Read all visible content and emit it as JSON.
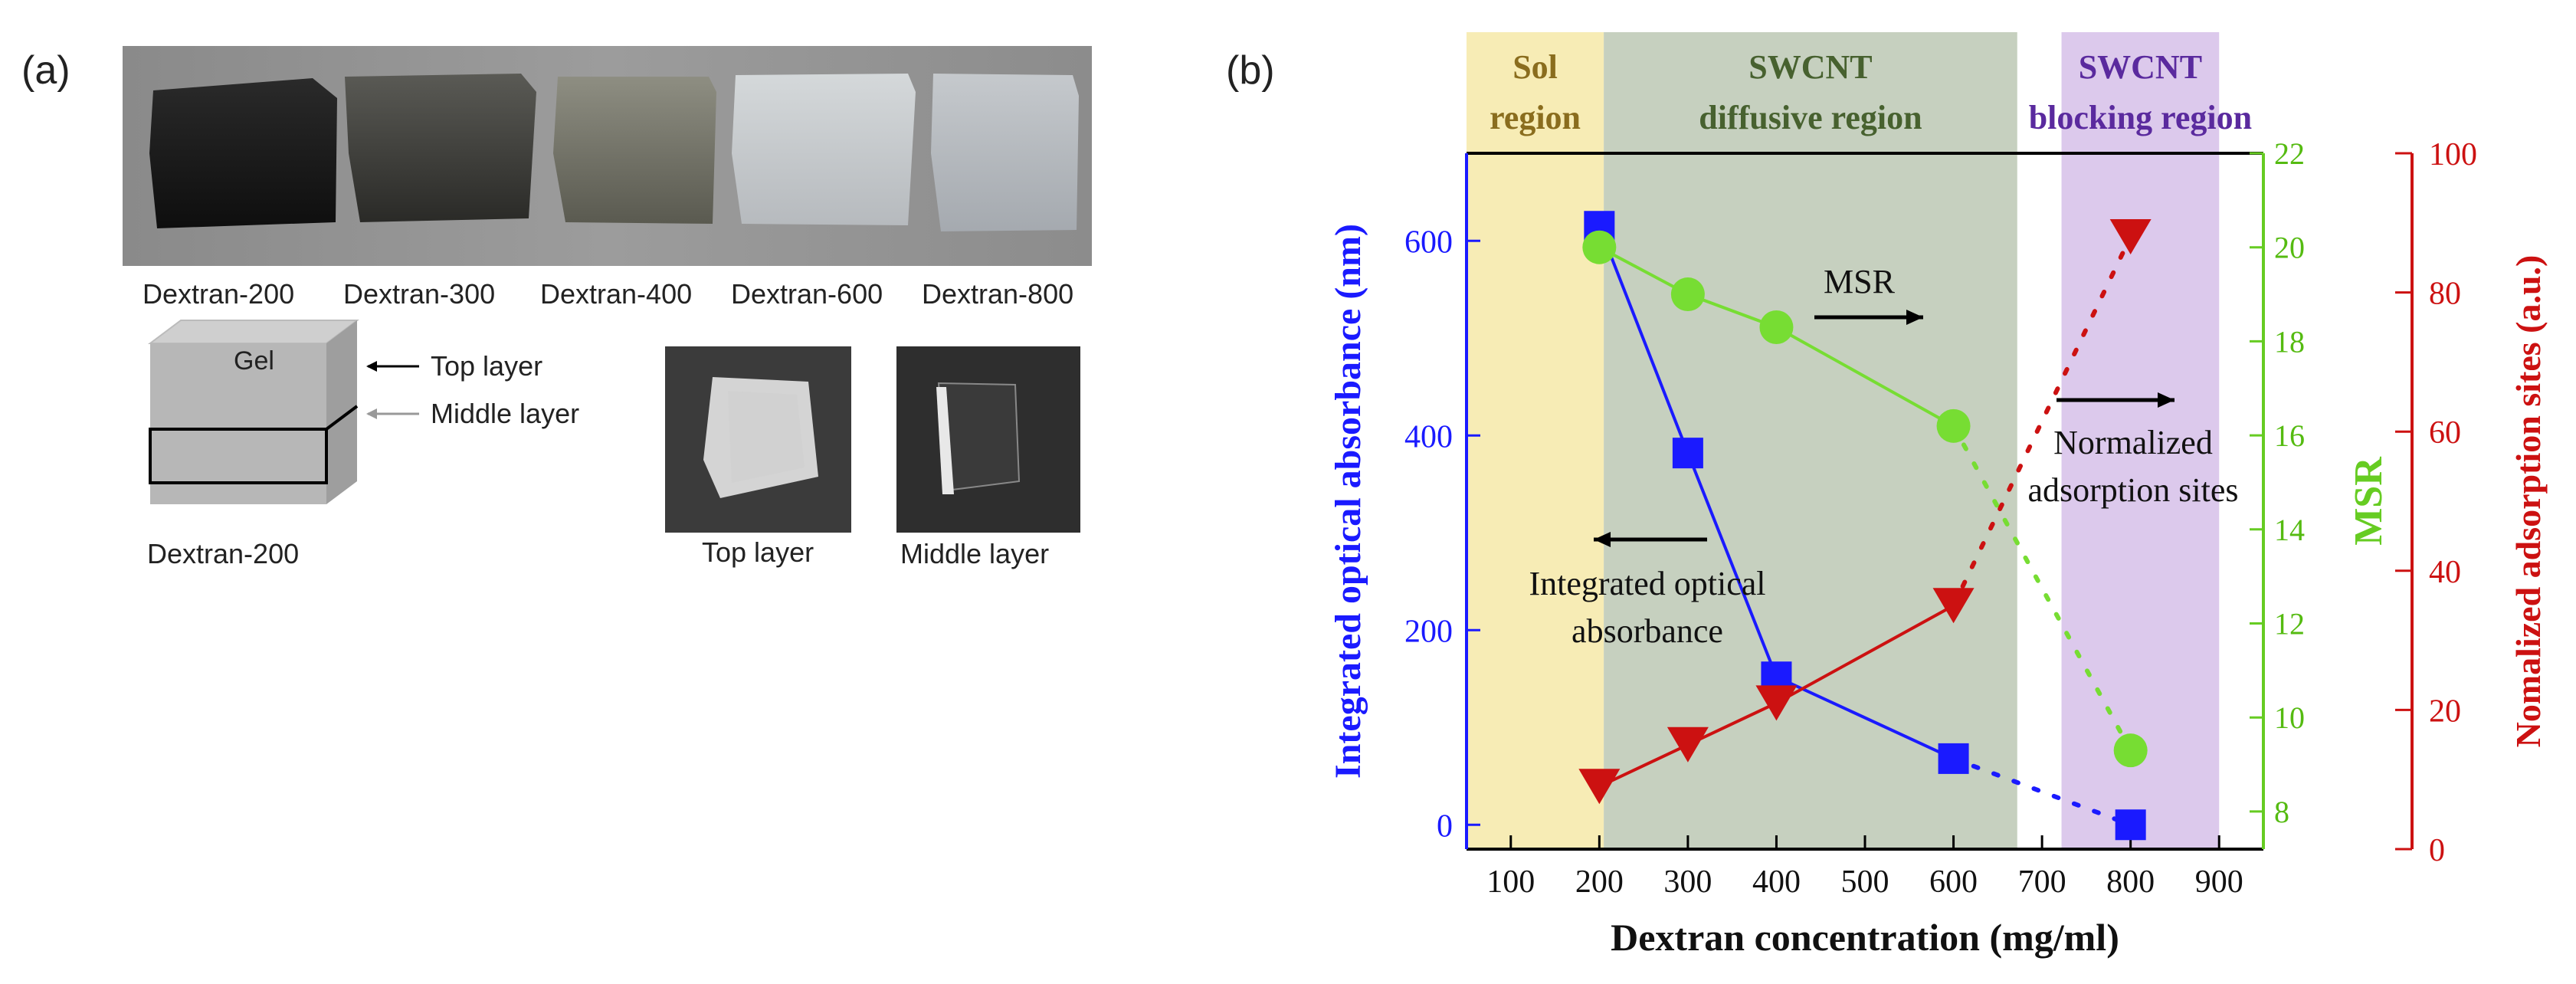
{
  "panel_a": {
    "label": "(a)",
    "photo_labels": [
      "Dextran-200",
      "Dextran-300",
      "Dextran-400",
      "Dextran-600",
      "Dextran-800"
    ],
    "diagram": {
      "gel_label": "Gel",
      "top_layer_label": "Top layer",
      "middle_layer_label": "Middle layer",
      "sample_label": "Dextran-200"
    },
    "layer_photo_labels": [
      "Top layer",
      "Middle layer"
    ]
  },
  "panel_b": {
    "label": "(b)"
  },
  "chart_data": {
    "type": "line",
    "regions": [
      {
        "label_lines": [
          "Sol",
          "region"
        ],
        "x_range": [
          50,
          205
        ],
        "color": "#f7ecb5",
        "text_color": "#8a6d1e"
      },
      {
        "label_lines": [
          "SWCNT",
          "diffusive region"
        ],
        "x_range": [
          205,
          672
        ],
        "color": "#c6d0bf",
        "text_color": "#47612f"
      },
      {
        "label_lines": [
          "SWCNT",
          "blocking region"
        ],
        "x_range": [
          722,
          900
        ],
        "color": "#dcc9ec",
        "text_color": "#5a2a9e"
      }
    ],
    "x": {
      "label": "Dextran concentration (mg/ml)",
      "lim": [
        50,
        950
      ],
      "ticks": [
        100,
        200,
        300,
        400,
        500,
        600,
        700,
        800,
        900
      ]
    },
    "y_left": {
      "label": "Integrated optical absorbance (nm)",
      "lim": [
        -25,
        690
      ],
      "ticks": [
        0,
        200,
        400,
        600
      ],
      "color": "#1a1aff"
    },
    "y_right1": {
      "label": "MSR",
      "lim": [
        7.2,
        22
      ],
      "ticks": [
        8,
        10,
        12,
        14,
        16,
        18,
        20,
        22
      ],
      "color": "#66dd22"
    },
    "y_right2": {
      "label": "Nomalized adsorption sites (a.u.)",
      "lim": [
        0,
        100
      ],
      "ticks": [
        0,
        20,
        40,
        60,
        80,
        100
      ],
      "color": "#cc1111"
    },
    "series": [
      {
        "name": "Integrated optical absorbance",
        "axis": "left",
        "marker": "square",
        "color": "#1a1aff",
        "x": [
          200,
          300,
          400,
          600,
          800
        ],
        "y": [
          615,
          382,
          152,
          68,
          0
        ],
        "dotted_from_index": 3
      },
      {
        "name": "MSR",
        "axis": "right1",
        "marker": "circle",
        "color": "#77dd33",
        "x": [
          200,
          300,
          400,
          600,
          800
        ],
        "y": [
          20.0,
          19.0,
          18.3,
          16.2,
          9.3
        ],
        "dotted_from_index": 3
      },
      {
        "name": "Normalized adsorption sites",
        "axis": "right2",
        "marker": "triangle-down",
        "color": "#cc1111",
        "x": [
          200,
          300,
          400,
          600,
          800
        ],
        "y": [
          9.0,
          15.0,
          21.0,
          35.0,
          88.0
        ],
        "dotted_from_index": 3
      }
    ],
    "annotations": {
      "msr": "MSR",
      "absorbance": [
        "Integrated optical",
        "absorbance"
      ],
      "adsorption": [
        "Normalized",
        "adsorption sites"
      ]
    }
  }
}
